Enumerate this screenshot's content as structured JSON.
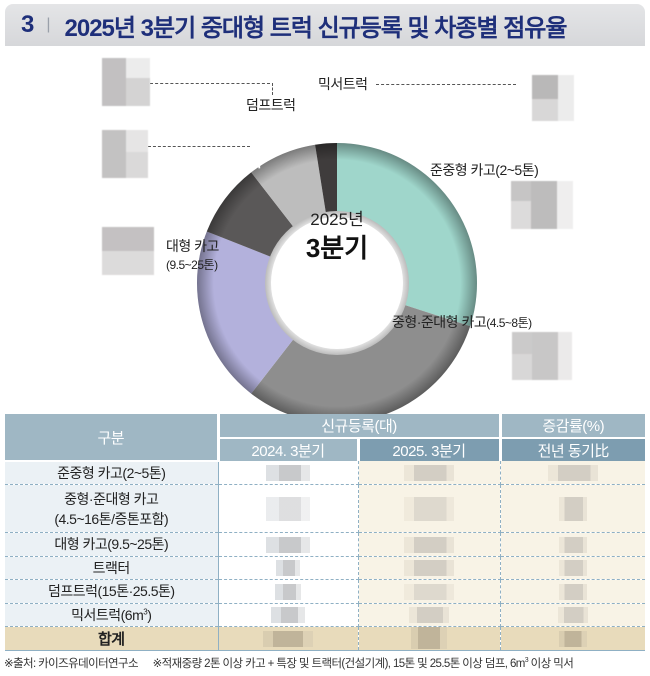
{
  "header": {
    "section_number": "3",
    "separator": "|",
    "title": "2025년 3분기 중대형 트럭 신규등록 및 차종별 점유율"
  },
  "chart_data": {
    "type": "pie",
    "subtype": "donut",
    "title": "2025년 3분기",
    "center_label_line1": "2025년",
    "center_label_line2": "3분기",
    "categories": [
      "준중형 카고(2~5톤)",
      "중형·준대형 카고(4.5~8톤)",
      "대형 카고(9.5~25톤)",
      "트랙터",
      "덤프트럭",
      "믹서트럭"
    ],
    "values_estimated_pct": [
      30.0,
      30.5,
      20.5,
      8.5,
      8.0,
      2.5
    ],
    "colors": [
      "#9fd6cb",
      "#8e8e8e",
      "#b3b1dc",
      "#5a5858",
      "#bdbdbd",
      "#3f3c3c"
    ],
    "value_labels": "blurred/redacted in source",
    "legend_position": "callout labels around donut"
  },
  "labels": {
    "mixer": "믹서트럭",
    "dump": "덤프트럭",
    "tractor": "트랙터",
    "light_cargo": "준중형 카고(2~5톤)",
    "large_cargo_line1": "대형 카고",
    "large_cargo_line2": "(9.5~25톤)",
    "medium_cargo_name": "중형·준대형 카고",
    "medium_cargo_range": "(4.5~8톤)"
  },
  "table": {
    "headers": {
      "category": "구분",
      "registrations": "신규등록(대)",
      "change": "증감률(%)",
      "q2024": "2024. 3분기",
      "q2025": "2025. 3분기",
      "yoy": "전년 동기比"
    },
    "rows": [
      {
        "label": "준중형 카고(2~5톤)",
        "q2024": "",
        "q2025": "",
        "yoy": ""
      },
      {
        "label_line1": "중형·준대형 카고",
        "label_line2": "(4.5~16톤/증톤포함)",
        "q2024": "",
        "q2025": "",
        "yoy": ""
      },
      {
        "label": "대형 카고(9.5~25톤)",
        "q2024": "",
        "q2025": "",
        "yoy": ""
      },
      {
        "label": "트랙터",
        "q2024": "",
        "q2025": "",
        "yoy": ""
      },
      {
        "label": "덤프트럭(15톤·25.5톤)",
        "q2024": "",
        "q2025": "",
        "yoy": ""
      },
      {
        "label": "믹서트럭(6m",
        "label_sup": "3",
        "label_end": ")",
        "q2024": "",
        "q2025": "",
        "yoy": ""
      },
      {
        "label": "합계",
        "q2024": "",
        "q2025": "",
        "yoy": ""
      }
    ]
  },
  "footnote": {
    "source": "※출처: 카이즈유데이터연구소",
    "note_a": "※적재중량 2톤 이상 카고 + 특장 및 트랙터(건설기계), 15톤 및 25.5톤 이상 덤프, 6m",
    "note_sup": "3",
    "note_b": " 이상 믹서"
  }
}
